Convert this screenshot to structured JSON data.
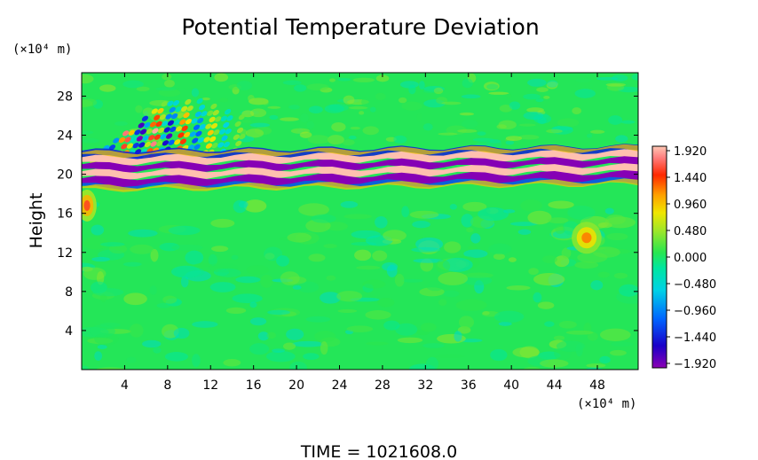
{
  "chart_data": {
    "type": "heatmap",
    "title": "Potential Temperature Deviation",
    "ylabel": "Height",
    "x_unit_label": "(×10⁴ m)",
    "y_unit_label": "(×10⁴ m)",
    "time_label": "TIME  =  1021608.0",
    "x_ticks": [
      4,
      8,
      12,
      16,
      20,
      24,
      28,
      32,
      36,
      40,
      44,
      48
    ],
    "y_ticks": [
      4,
      8,
      12,
      16,
      20,
      24,
      28
    ],
    "xlim": [
      0,
      51.8
    ],
    "ylim": [
      0,
      30.4
    ],
    "colorbar": {
      "labels": [
        "1.920",
        "1.440",
        "0.960",
        "0.480",
        "0.000",
        "−0.480",
        "−0.960",
        "−1.440",
        "−1.920"
      ],
      "range": [
        -1.92,
        1.92
      ]
    },
    "background_value": 0.05,
    "features": [
      {
        "kind": "band",
        "desc": "tropopause layer",
        "y_center": 20.6,
        "tilt": 1.0,
        "values": [
          1.9,
          -1.9,
          1.9,
          -1.9
        ]
      },
      {
        "kind": "band",
        "desc": "upper negative layer",
        "y_center": 22.2,
        "value": -1.4
      },
      {
        "kind": "band",
        "desc": "lower negative layer",
        "y_center": 19.3,
        "value": -1.2
      },
      {
        "kind": "wave-packet",
        "desc": "gravity waves upper left",
        "x_center": 6,
        "y_center": 24,
        "amplitude": 1.9
      },
      {
        "kind": "blob",
        "desc": "warm patch left edge",
        "x": 0.5,
        "y": 16.8,
        "value": 1.0
      },
      {
        "kind": "blob",
        "desc": "warm patch right",
        "x": 47,
        "y": 13.5,
        "value": 0.8
      }
    ]
  }
}
